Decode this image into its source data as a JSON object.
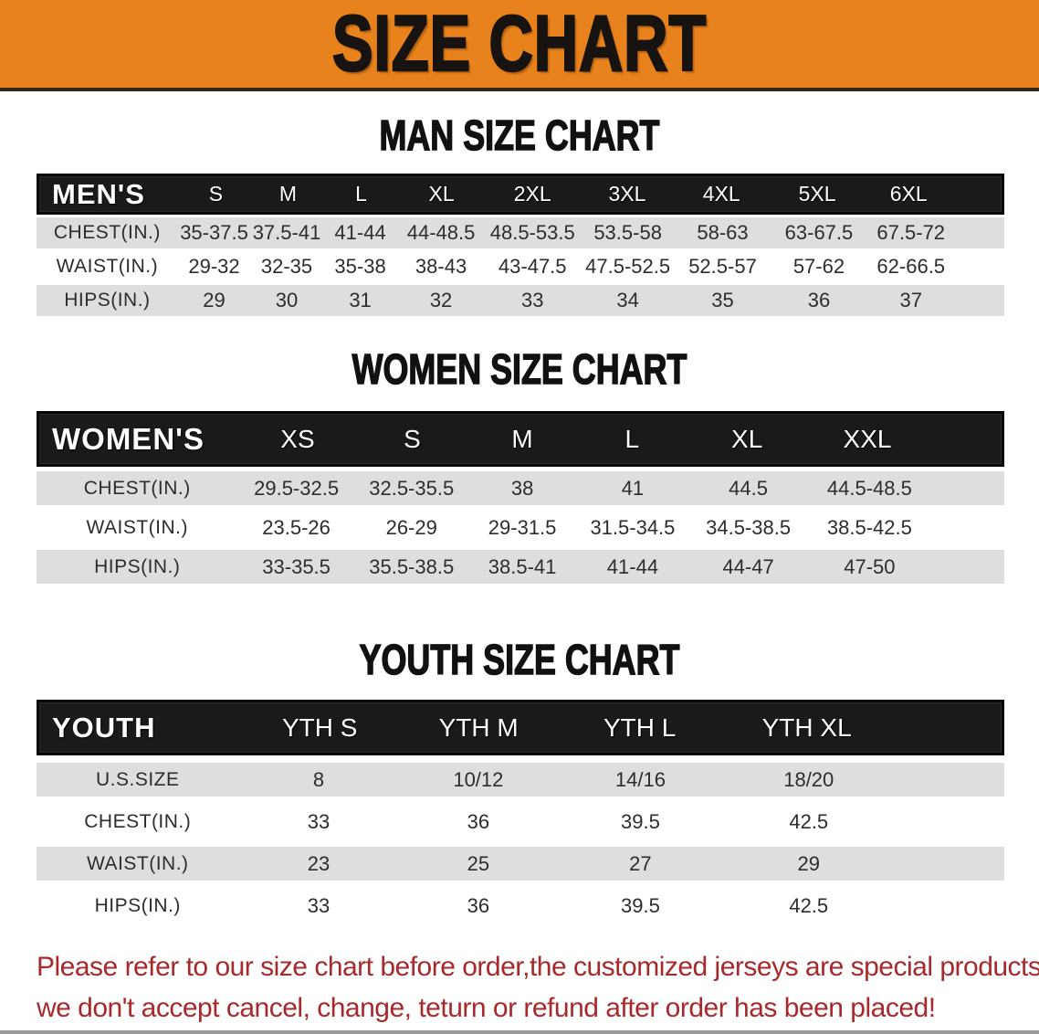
{
  "banner": {
    "title": "SIZE CHART",
    "bg_color": "#E8821C",
    "text_color": "#161310"
  },
  "man": {
    "heading": "MAN SIZE CHART",
    "table": {
      "label": "MEN'S",
      "sizes": [
        "S",
        "M",
        "L",
        "XL",
        "2XL",
        "3XL",
        "4XL",
        "5XL",
        "6XL"
      ],
      "rows": [
        {
          "label": "CHEST(IN.)",
          "values": [
            "35-37.5",
            "37.5-41",
            "41-44",
            "44-48.5",
            "48.5-53.5",
            "53.5-58",
            "58-63",
            "63-67.5",
            "67.5-72"
          ]
        },
        {
          "label": "WAIST(IN.)",
          "values": [
            "29-32",
            "32-35",
            "35-38",
            "38-43",
            "43-47.5",
            "47.5-52.5",
            "52.5-57",
            "57-62",
            "62-66.5"
          ]
        },
        {
          "label": "HIPS(IN.)",
          "values": [
            "29",
            "30",
            "31",
            "32",
            "33",
            "34",
            "35",
            "36",
            "37"
          ]
        }
      ]
    }
  },
  "women": {
    "heading": "WOMEN SIZE CHART",
    "table": {
      "label": "WOMEN'S",
      "sizes": [
        "XS",
        "S",
        "M",
        "L",
        "XL",
        "XXL"
      ],
      "rows": [
        {
          "label": "CHEST(IN.)",
          "values": [
            "29.5-32.5",
            "32.5-35.5",
            "38",
            "41",
            "44.5",
            "44.5-48.5"
          ]
        },
        {
          "label": "WAIST(IN.)",
          "values": [
            "23.5-26",
            "26-29",
            "29-31.5",
            "31.5-34.5",
            "34.5-38.5",
            "38.5-42.5"
          ]
        },
        {
          "label": "HIPS(IN.)",
          "values": [
            "33-35.5",
            "35.5-38.5",
            "38.5-41",
            "41-44",
            "44-47",
            "47-50"
          ]
        }
      ]
    }
  },
  "youth": {
    "heading": "YOUTH SIZE CHART",
    "table": {
      "label": "YOUTH",
      "sizes": [
        "YTH S",
        "YTH M",
        "YTH L",
        "YTH XL"
      ],
      "rows": [
        {
          "label": "U.S.SIZE",
          "values": [
            "8",
            "10/12",
            "14/16",
            "18/20"
          ]
        },
        {
          "label": "CHEST(IN.)",
          "values": [
            "33",
            "36",
            "39.5",
            "42.5"
          ]
        },
        {
          "label": "WAIST(IN.)",
          "values": [
            "23",
            "25",
            "27",
            "29"
          ]
        },
        {
          "label": "HIPS(IN.)",
          "values": [
            "33",
            "36",
            "39.5",
            "42.5"
          ]
        }
      ]
    }
  },
  "disclaimer": {
    "line1": "Please refer to our size chart before order,the customized jerseys are special products,",
    "line2": "we don't accept cancel, change, teturn or refund after order has been placed!",
    "color": "#A8292B"
  },
  "colors": {
    "row_gray": "#DEDEDE",
    "header_black": "#1c1a19",
    "accent_orange": "#E8821C"
  }
}
